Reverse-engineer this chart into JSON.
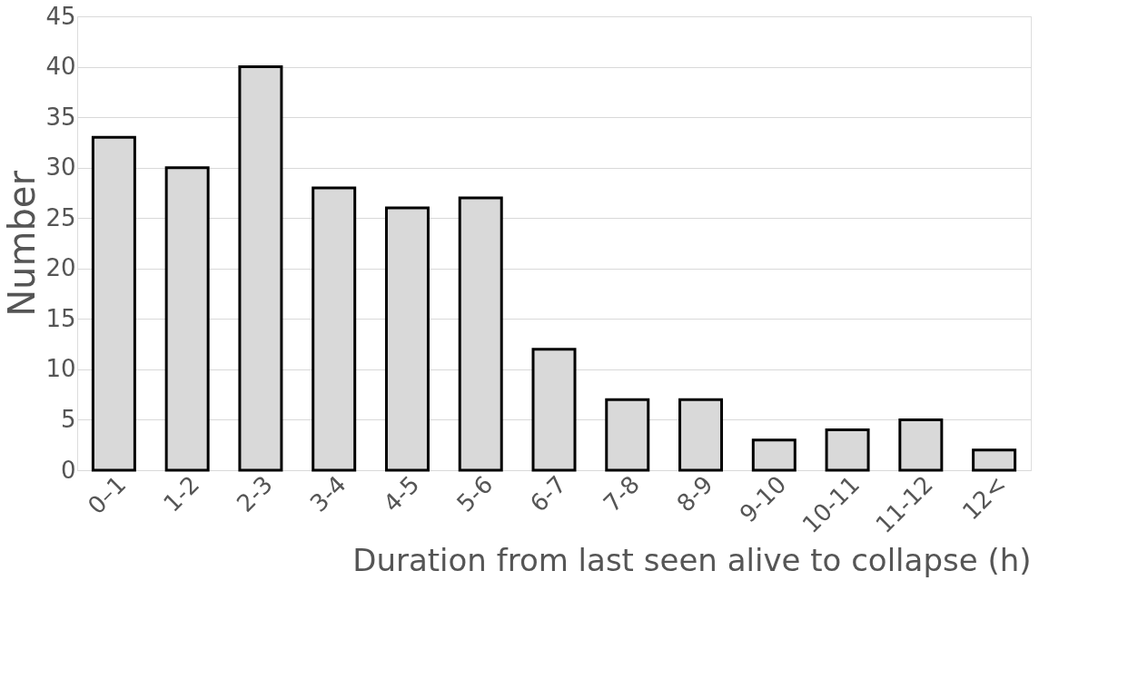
{
  "chart_data": {
    "type": "bar",
    "categories": [
      "0–1",
      "1-2",
      "2-3",
      "3-4",
      "4-5",
      "5-6",
      "6-7",
      "7-8",
      "8-9",
      "9-10",
      "10-11",
      "11-12",
      "12<"
    ],
    "values": [
      33,
      30,
      40,
      28,
      26,
      27,
      12,
      7,
      7,
      3,
      4,
      5,
      2
    ],
    "color": "#d9d9d9",
    "xlabel": "Duration from last seen alive to collapse (h)",
    "ylabel": "Number",
    "ylim": [
      0,
      45
    ],
    "yticks": [
      0,
      5,
      10,
      15,
      20,
      25,
      30,
      35,
      40,
      45
    ],
    "grid": "y"
  }
}
